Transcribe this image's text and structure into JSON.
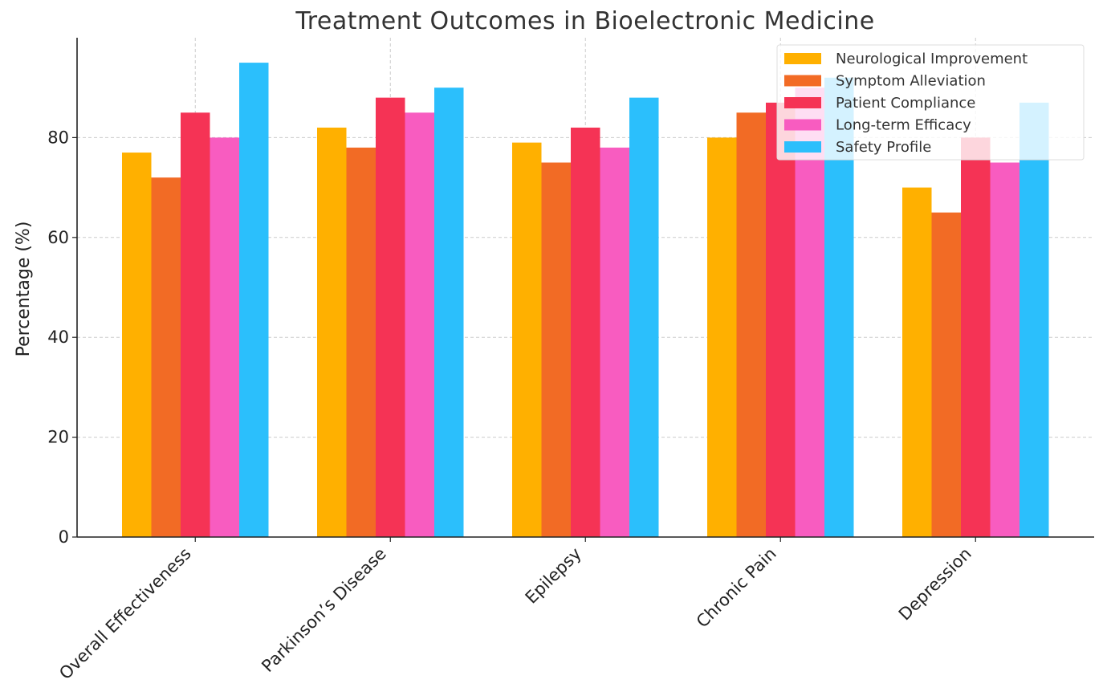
{
  "chart_data": {
    "type": "bar",
    "title": "Treatment Outcomes in Bioelectronic Medicine",
    "xlabel": "",
    "ylabel": "Percentage (%)",
    "ylim": [
      0,
      100
    ],
    "yticks": [
      0,
      20,
      40,
      60,
      80
    ],
    "grid": true,
    "legend_position": "top-right",
    "categories": [
      "Overall Effectiveness",
      "Parkinson’s Disease",
      "Epilepsy",
      "Chronic Pain",
      "Depression"
    ],
    "series": [
      {
        "name": "Neurological Improvement",
        "color": "#FFB000",
        "values": [
          77,
          82,
          79,
          80,
          70
        ]
      },
      {
        "name": "Symptom Alleviation",
        "color": "#F26B25",
        "values": [
          72,
          78,
          75,
          85,
          65
        ]
      },
      {
        "name": "Patient Compliance",
        "color": "#F53355",
        "values": [
          85,
          88,
          82,
          87,
          80
        ]
      },
      {
        "name": "Long-term Efficacy",
        "color": "#F85CC0",
        "values": [
          80,
          85,
          78,
          90,
          75
        ]
      },
      {
        "name": "Safety Profile",
        "color": "#2BBFFC",
        "values": [
          95,
          90,
          88,
          92,
          87
        ]
      }
    ]
  }
}
